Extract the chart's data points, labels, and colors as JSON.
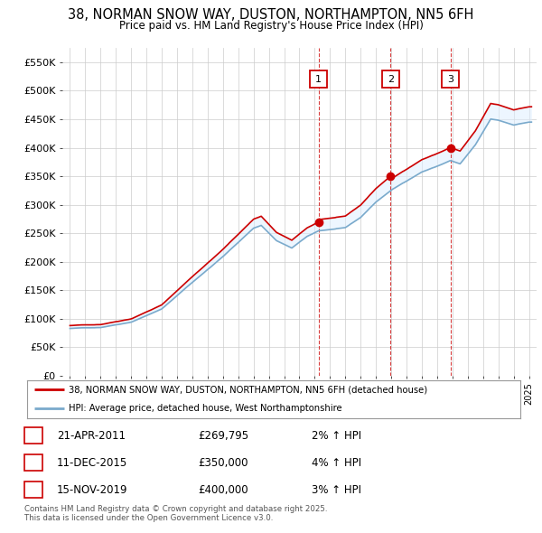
{
  "title": "38, NORMAN SNOW WAY, DUSTON, NORTHAMPTON, NN5 6FH",
  "subtitle": "Price paid vs. HM Land Registry's House Price Index (HPI)",
  "background_color": "#ffffff",
  "plot_bg_color": "#ffffff",
  "grid_color": "#cccccc",
  "transactions": [
    {
      "num": 1,
      "date": "21-APR-2011",
      "price": 269795,
      "price_str": "£269,795",
      "hpi_change": "2% ↑ HPI",
      "year": 2011.25
    },
    {
      "num": 2,
      "date": "11-DEC-2015",
      "price": 350000,
      "price_str": "£350,000",
      "hpi_change": "4% ↑ HPI",
      "year": 2015.95
    },
    {
      "num": 3,
      "date": "15-NOV-2019",
      "price": 400000,
      "price_str": "£400,000",
      "hpi_change": "3% ↑ HPI",
      "year": 2019.87
    }
  ],
  "legend_line1": "38, NORMAN SNOW WAY, DUSTON, NORTHAMPTON, NN5 6FH (detached house)",
  "legend_line2": "HPI: Average price, detached house, West Northamptonshire",
  "footnote": "Contains HM Land Registry data © Crown copyright and database right 2025.\nThis data is licensed under the Open Government Licence v3.0.",
  "ylim": [
    0,
    575000
  ],
  "yticks": [
    0,
    50000,
    100000,
    150000,
    200000,
    250000,
    300000,
    350000,
    400000,
    450000,
    500000,
    550000
  ],
  "ytick_labels": [
    "£0",
    "£50K",
    "£100K",
    "£150K",
    "£200K",
    "£250K",
    "£300K",
    "£350K",
    "£400K",
    "£450K",
    "£500K",
    "£550K"
  ],
  "xlim_start": 1994.5,
  "xlim_end": 2025.5,
  "red_color": "#cc0000",
  "blue_color": "#7aaacc",
  "blue_fill_color": "#ddeeff",
  "marker_box_color": "#cc0000",
  "hpi_key_points_years": [
    1995.0,
    1997.0,
    1999.0,
    2001.0,
    2003.0,
    2005.0,
    2007.0,
    2007.5,
    2008.5,
    2009.5,
    2010.5,
    2011.25,
    2013.0,
    2014.0,
    2015.0,
    2015.95,
    2017.0,
    2018.0,
    2019.0,
    2019.87,
    2020.5,
    2021.5,
    2022.5,
    2023.0,
    2024.0,
    2025.0
  ],
  "hpi_key_points_values": [
    83000,
    85000,
    95000,
    118000,
    165000,
    210000,
    260000,
    265000,
    238000,
    225000,
    245000,
    255000,
    260000,
    278000,
    305000,
    325000,
    342000,
    358000,
    368000,
    378000,
    372000,
    405000,
    450000,
    448000,
    440000,
    445000
  ]
}
